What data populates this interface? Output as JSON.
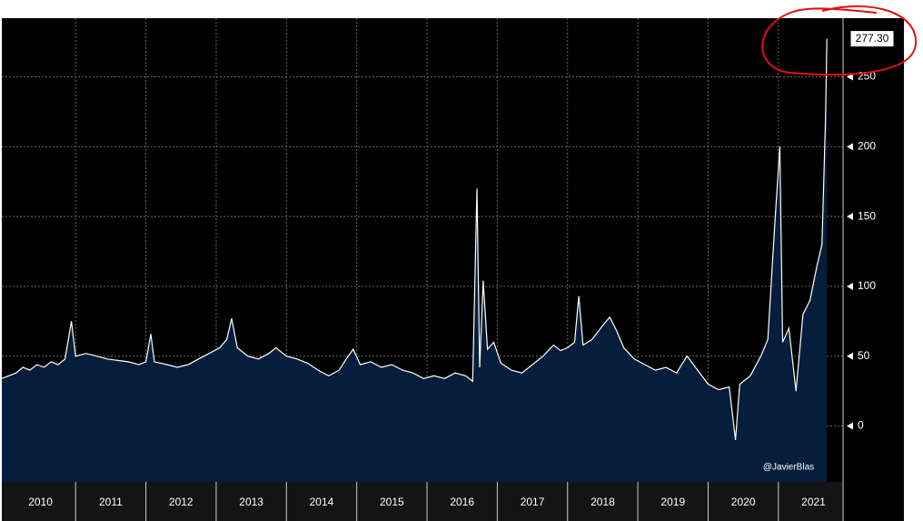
{
  "chart_data": {
    "type": "area",
    "annotation": "@JavierBlas",
    "x": [
      2009.95,
      2010.05,
      2010.15,
      2010.25,
      2010.35,
      2010.45,
      2010.55,
      2010.65,
      2010.75,
      2010.85,
      2010.94,
      2011.0,
      2011.15,
      2011.3,
      2011.45,
      2011.6,
      2011.75,
      2011.9,
      2012.0,
      2012.07,
      2012.12,
      2012.3,
      2012.45,
      2012.6,
      2012.75,
      2012.9,
      2013.05,
      2013.15,
      2013.22,
      2013.3,
      2013.45,
      2013.6,
      2013.75,
      2013.85,
      2014.0,
      2014.15,
      2014.3,
      2014.45,
      2014.6,
      2014.75,
      2014.85,
      2014.95,
      2015.05,
      2015.2,
      2015.35,
      2015.5,
      2015.65,
      2015.8,
      2015.95,
      2016.1,
      2016.25,
      2016.4,
      2016.55,
      2016.65,
      2016.71,
      2016.75,
      2016.8,
      2016.86,
      2016.95,
      2017.05,
      2017.2,
      2017.35,
      2017.5,
      2017.65,
      2017.8,
      2017.9,
      2018.0,
      2018.1,
      2018.16,
      2018.22,
      2018.35,
      2018.5,
      2018.6,
      2018.7,
      2018.8,
      2018.95,
      2019.1,
      2019.25,
      2019.4,
      2019.55,
      2019.7,
      2019.85,
      2020.0,
      2020.15,
      2020.3,
      2020.39,
      2020.45,
      2020.6,
      2020.75,
      2020.85,
      2020.95,
      2021.02,
      2021.06,
      2021.15,
      2021.25,
      2021.35,
      2021.45,
      2021.55,
      2021.62,
      2021.67,
      2021.69
    ],
    "values": [
      34,
      36,
      38,
      42,
      40,
      44,
      42,
      46,
      44,
      48,
      75,
      50,
      52,
      50,
      48,
      47,
      46,
      44,
      46,
      66,
      46,
      44,
      42,
      44,
      48,
      52,
      56,
      62,
      77,
      56,
      50,
      48,
      52,
      56,
      50,
      48,
      45,
      40,
      36,
      40,
      48,
      55,
      44,
      46,
      42,
      44,
      40,
      38,
      34,
      36,
      34,
      38,
      36,
      32,
      170,
      42,
      104,
      55,
      60,
      45,
      40,
      38,
      44,
      50,
      58,
      54,
      56,
      60,
      93,
      58,
      62,
      72,
      78,
      68,
      56,
      48,
      44,
      40,
      42,
      38,
      50,
      40,
      30,
      26,
      28,
      -10,
      30,
      36,
      50,
      62,
      146,
      200,
      60,
      70,
      25,
      80,
      90,
      115,
      130,
      220,
      277.3
    ],
    "value_labels": [
      null,
      null,
      null,
      null,
      null,
      null,
      null,
      null,
      null,
      null,
      null,
      null,
      null,
      null,
      null,
      null,
      null,
      null,
      null,
      null,
      null,
      null,
      null,
      null,
      null,
      null,
      null,
      null,
      null,
      null,
      null,
      null,
      null,
      null,
      null,
      null,
      null,
      null,
      null,
      null,
      null,
      null,
      null,
      null,
      null,
      null,
      null,
      null,
      null,
      null,
      null,
      null,
      null,
      null,
      null,
      null,
      null,
      null,
      null,
      null,
      null,
      null,
      null,
      null,
      null,
      null,
      null,
      null,
      null,
      null,
      null,
      null,
      null,
      null,
      null,
      null,
      null,
      null,
      null,
      null,
      null,
      null,
      null,
      null,
      null,
      null,
      null,
      null,
      null,
      null,
      null,
      null,
      null,
      null,
      null,
      null,
      null,
      null,
      null,
      null,
      "277.30"
    ],
    "line_color": "#ffffff",
    "fill_color": "#061e3c",
    "xlim": [
      2009.95,
      2021.92
    ],
    "xticks": [
      {
        "value": 2010.5,
        "label": "2010"
      },
      {
        "value": 2011.5,
        "label": "2011"
      },
      {
        "value": 2012.5,
        "label": "2012"
      },
      {
        "value": 2013.5,
        "label": "2013"
      },
      {
        "value": 2014.5,
        "label": "2014"
      },
      {
        "value": 2015.5,
        "label": "2015"
      },
      {
        "value": 2016.5,
        "label": "2016"
      },
      {
        "value": 2017.5,
        "label": "2017"
      },
      {
        "value": 2018.5,
        "label": "2018"
      },
      {
        "value": 2019.5,
        "label": "2019"
      },
      {
        "value": 2020.5,
        "label": "2020"
      },
      {
        "value": 2021.5,
        "label": "2021"
      }
    ],
    "xgrid": [
      2011,
      2012,
      2013,
      2014,
      2015,
      2016,
      2017,
      2018,
      2019,
      2020,
      2021
    ],
    "ylim": [
      -40,
      292
    ],
    "yticks": [
      0,
      50,
      100,
      150,
      200,
      250
    ],
    "grid": true
  }
}
